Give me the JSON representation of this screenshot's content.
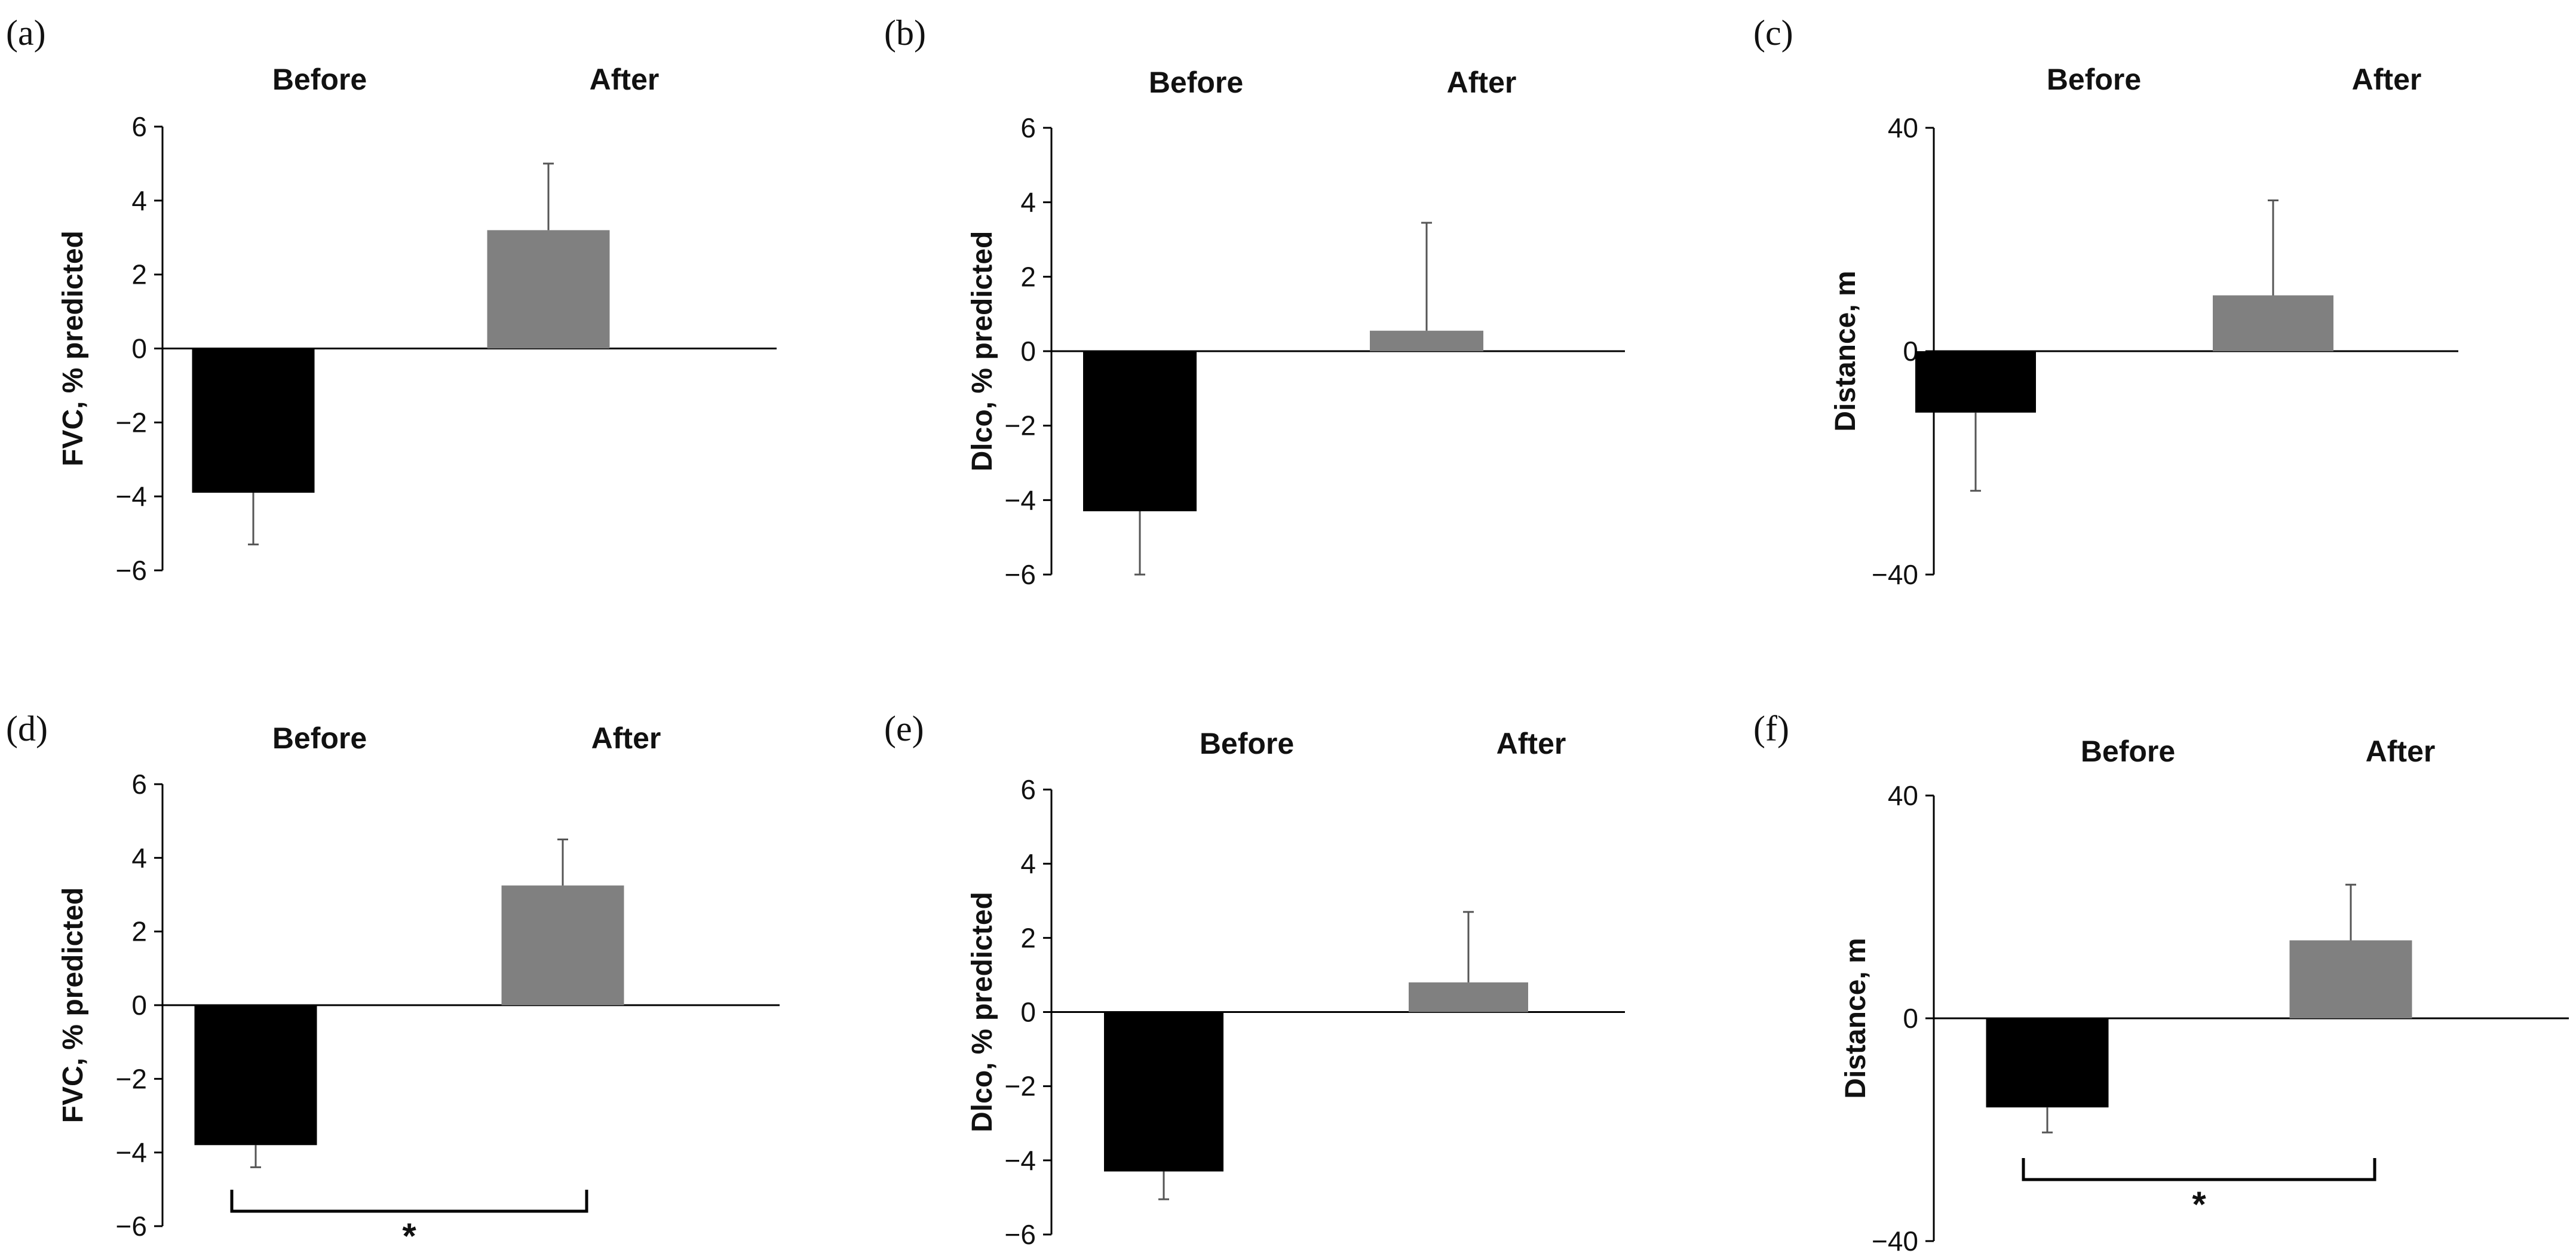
{
  "chart_data": [
    {
      "panel": "(a)",
      "type": "bar",
      "categories": [
        "Before",
        "After"
      ],
      "values": [
        -3.9,
        3.2
      ],
      "error_plus": [
        0,
        1.8
      ],
      "error_minus": [
        1.4,
        0
      ],
      "ylabel": "FVC, % predicted",
      "ylim": [
        -6,
        6
      ],
      "yticks": [
        "6",
        "4",
        "2",
        "0",
        "−2",
        "−4",
        "−6"
      ],
      "bar_colors": [
        "#000000",
        "#808080"
      ],
      "significance": ""
    },
    {
      "panel": "(b)",
      "type": "bar",
      "categories": [
        "Before",
        "After"
      ],
      "values": [
        -4.3,
        0.55
      ],
      "error_plus": [
        0,
        2.9
      ],
      "error_minus": [
        1.7,
        0
      ],
      "ylabel": "Dlco, % predicted",
      "ylim": [
        -6,
        6
      ],
      "yticks": [
        "6",
        "4",
        "2",
        "0",
        "−2",
        "−4",
        "−6"
      ],
      "bar_colors": [
        "#000000",
        "#808080"
      ],
      "significance": ""
    },
    {
      "panel": "(c)",
      "type": "bar",
      "categories": [
        "Before",
        "After"
      ],
      "values": [
        -11,
        10
      ],
      "error_plus": [
        0,
        17
      ],
      "error_minus": [
        14,
        0
      ],
      "ylabel": "Distance, m",
      "ylim": [
        -40,
        40
      ],
      "yticks": [
        "40",
        "0",
        "−40"
      ],
      "bar_colors": [
        "#000000",
        "#808080"
      ],
      "significance": ""
    },
    {
      "panel": "(d)",
      "type": "bar",
      "categories": [
        "Before",
        "After"
      ],
      "values": [
        -3.8,
        3.25
      ],
      "error_plus": [
        0,
        1.25
      ],
      "error_minus": [
        0.6,
        0
      ],
      "ylabel": "FVC, % predicted",
      "ylim": [
        -6,
        6
      ],
      "yticks": [
        "6",
        "4",
        "2",
        "0",
        "−2",
        "−4",
        "−6"
      ],
      "bar_colors": [
        "#000000",
        "#808080"
      ],
      "significance": "*"
    },
    {
      "panel": "(e)",
      "type": "bar",
      "categories": [
        "Before",
        "After"
      ],
      "values": [
        -4.3,
        0.8
      ],
      "error_plus": [
        0,
        1.9
      ],
      "error_minus": [
        0.75,
        0
      ],
      "ylabel": "Dlco, % predicted",
      "ylim": [
        -6,
        6
      ],
      "yticks": [
        "6",
        "4",
        "2",
        "0",
        "−2",
        "−4",
        "−6"
      ],
      "bar_colors": [
        "#000000",
        "#808080"
      ],
      "significance": ""
    },
    {
      "panel": "(f)",
      "type": "bar",
      "categories": [
        "Before",
        "After"
      ],
      "values": [
        -16,
        14
      ],
      "error_plus": [
        0,
        10
      ],
      "error_minus": [
        4.5,
        0
      ],
      "ylabel": "Distance, m",
      "ylim": [
        -40,
        40
      ],
      "yticks": [
        "40",
        "0",
        "−40"
      ],
      "bar_colors": [
        "#000000",
        "#808080"
      ],
      "significance": "*"
    }
  ]
}
